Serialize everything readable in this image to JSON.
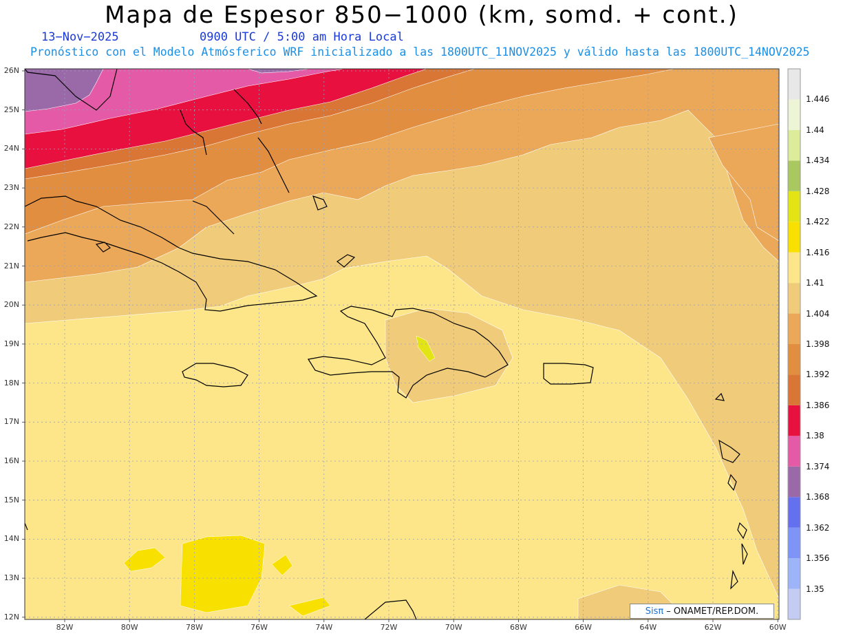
{
  "header": {
    "title": "Mapa de Espesor 850−1000 (km, somd. + cont.)",
    "date": "13−Nov−2025",
    "time": "0900 UTC / 5:00 am Hora Local",
    "run_info": "Pronóstico con el Modelo Atmósferico WRF inicializado a las 1800UTC_11NOV2025 y válido hasta las  1800UTC_14NOV2025"
  },
  "axes": {
    "lat_labels": [
      "26N",
      "25N",
      "24N",
      "23N",
      "22N",
      "21N",
      "20N",
      "19N",
      "18N",
      "17N",
      "16N",
      "15N",
      "14N",
      "13N",
      "12N"
    ],
    "lon_labels": [
      "82W",
      "80W",
      "78W",
      "76W",
      "74W",
      "72W",
      "70W",
      "68W",
      "66W",
      "64W",
      "62W",
      "60W"
    ]
  },
  "colorbar": {
    "levels": [
      "1.35",
      "1.356",
      "1.362",
      "1.368",
      "1.374",
      "1.38",
      "1.386",
      "1.392",
      "1.398",
      "1.404",
      "1.41",
      "1.416",
      "1.422",
      "1.428",
      "1.434",
      "1.44",
      "1.446"
    ],
    "colors": [
      "#c4ccf4",
      "#9db4f8",
      "#7e94f6",
      "#6470ee",
      "#9a6aa8",
      "#e55aa6",
      "#e8103f",
      "#d97636",
      "#e28e40",
      "#eba858",
      "#f0cc7a",
      "#fde68a",
      "#f8e100",
      "#e2e415",
      "#a9c860",
      "#dcec9a",
      "#eef4d6",
      "#e8e8e8"
    ]
  },
  "credit": {
    "brand": "Sisπ",
    "text": "– ONAMET/REP.DOM."
  },
  "map_colors": {
    "purple": "#9a6aa8",
    "magenta": "#e55aa6",
    "red": "#e8103f",
    "dark_orange": "#d97636",
    "orange": "#e28e40",
    "light_orange": "#eba858",
    "tan": "#f0cc7a",
    "light_yellow": "#fde68a",
    "yellow": "#f8e100"
  }
}
